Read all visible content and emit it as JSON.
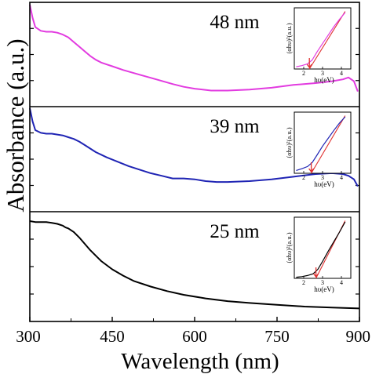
{
  "chart_data": {
    "type": "line",
    "ylabel": "Absorbance (a.u.)",
    "xlabel": "Wavelength (nm)",
    "xlim": [
      300,
      900
    ],
    "x_ticks": [
      "300",
      "450",
      "600",
      "750",
      "900"
    ],
    "panels": [
      {
        "label": "48 nm",
        "color": "#e23be0",
        "ylim": [
          0,
          1
        ],
        "x": [
          300,
          305,
          310,
          320,
          330,
          340,
          350,
          360,
          370,
          380,
          390,
          400,
          410,
          420,
          430,
          440,
          450,
          470,
          500,
          530,
          560,
          580,
          600,
          630,
          660,
          700,
          740,
          780,
          820,
          850,
          870,
          880,
          890,
          897
        ],
        "y": [
          1.0,
          0.86,
          0.76,
          0.72,
          0.71,
          0.71,
          0.7,
          0.68,
          0.65,
          0.6,
          0.55,
          0.5,
          0.45,
          0.41,
          0.38,
          0.36,
          0.34,
          0.3,
          0.25,
          0.2,
          0.15,
          0.12,
          0.1,
          0.08,
          0.08,
          0.09,
          0.11,
          0.14,
          0.16,
          0.18,
          0.2,
          0.22,
          0.18,
          0.07
        ],
        "inset": {
          "ylabel": "(αhυ)²(a.u.)",
          "xlabel": "hυ(eV)",
          "x_ticks": [
            "2",
            "3",
            "4"
          ],
          "xlim": [
            1.5,
            4.5
          ],
          "data_x": [
            1.6,
            1.9,
            2.2,
            2.45,
            2.7,
            3.0,
            3.3,
            3.6,
            3.9,
            4.2
          ],
          "data_y": [
            0.04,
            0.06,
            0.09,
            0.16,
            0.3,
            0.45,
            0.6,
            0.75,
            0.88,
            1.0
          ],
          "fit_x": [
            2.3,
            4.2
          ],
          "fit_y": [
            0.0,
            1.05
          ]
        }
      },
      {
        "label": "39 nm",
        "color": "#1f24b4",
        "ylim": [
          0,
          1
        ],
        "x": [
          300,
          305,
          310,
          320,
          330,
          340,
          350,
          360,
          370,
          380,
          390,
          400,
          420,
          440,
          460,
          480,
          500,
          520,
          540,
          560,
          580,
          600,
          620,
          640,
          660,
          700,
          740,
          780,
          820,
          850,
          870,
          880,
          890,
          897
        ],
        "y": [
          1.0,
          0.85,
          0.75,
          0.72,
          0.71,
          0.71,
          0.7,
          0.69,
          0.67,
          0.65,
          0.62,
          0.58,
          0.5,
          0.44,
          0.39,
          0.34,
          0.3,
          0.26,
          0.23,
          0.2,
          0.2,
          0.19,
          0.17,
          0.16,
          0.16,
          0.17,
          0.19,
          0.22,
          0.25,
          0.26,
          0.25,
          0.23,
          0.19,
          0.11
        ],
        "inset": {
          "ylabel": "(αhυ)²(a.u.)",
          "xlabel": "hυ(eV)",
          "x_ticks": [
            "2",
            "3",
            "4"
          ],
          "xlim": [
            1.5,
            4.5
          ],
          "data_x": [
            1.6,
            1.9,
            2.2,
            2.45,
            2.7,
            3.0,
            3.3,
            3.6,
            3.9,
            4.2
          ],
          "data_y": [
            0.05,
            0.08,
            0.12,
            0.19,
            0.32,
            0.48,
            0.62,
            0.76,
            0.89,
            1.0
          ],
          "fit_x": [
            2.4,
            4.2
          ],
          "fit_y": [
            0.0,
            1.05
          ]
        }
      },
      {
        "label": "25 nm",
        "color": "#000000",
        "ylim": [
          0,
          1
        ],
        "x": [
          300,
          310,
          320,
          330,
          340,
          350,
          360,
          365,
          370,
          380,
          390,
          400,
          410,
          420,
          430,
          450,
          470,
          490,
          520,
          550,
          580,
          620,
          660,
          700,
          750,
          800,
          850,
          900
        ],
        "y": [
          1.0,
          0.99,
          0.99,
          0.99,
          0.98,
          0.97,
          0.95,
          0.93,
          0.92,
          0.88,
          0.82,
          0.75,
          0.68,
          0.62,
          0.56,
          0.47,
          0.4,
          0.34,
          0.28,
          0.23,
          0.19,
          0.15,
          0.12,
          0.1,
          0.08,
          0.06,
          0.05,
          0.04
        ],
        "inset": {
          "ylabel": "(αhυ)²(a.u.)",
          "xlabel": "hυ(eV)",
          "x_ticks": [
            "2",
            "3",
            "4"
          ],
          "xlim": [
            1.5,
            4.5
          ],
          "data_x": [
            1.6,
            1.9,
            2.2,
            2.5,
            2.75,
            3.0,
            3.3,
            3.6,
            3.9,
            4.2
          ],
          "data_y": [
            0.02,
            0.03,
            0.05,
            0.08,
            0.16,
            0.3,
            0.48,
            0.65,
            0.82,
            1.0
          ],
          "fit_x": [
            2.65,
            4.2
          ],
          "fit_y": [
            0.0,
            1.05
          ]
        }
      }
    ]
  }
}
